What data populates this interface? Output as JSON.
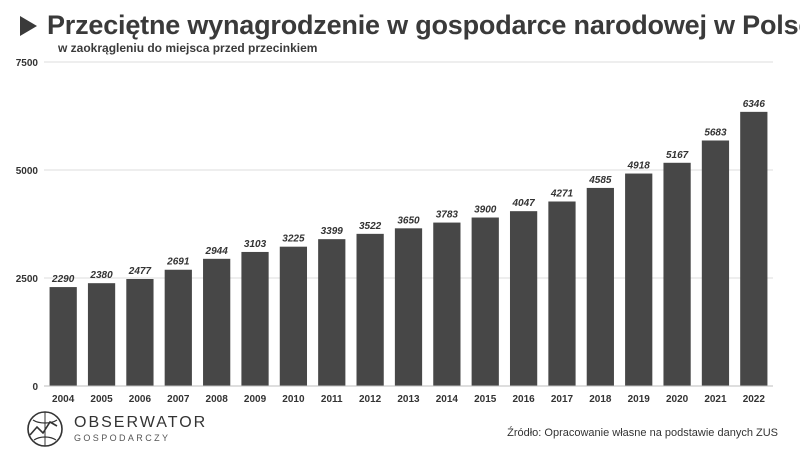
{
  "header": {
    "title": "Przeciętne wynagrodzenie w gospodarce narodowej w Polsce",
    "subtitle": "w zaokrągleniu do miejsca przed przecinkiem"
  },
  "chart_data": {
    "type": "bar",
    "categories": [
      "2004",
      "2005",
      "2006",
      "2007",
      "2008",
      "2009",
      "2010",
      "2011",
      "2012",
      "2013",
      "2014",
      "2015",
      "2016",
      "2017",
      "2018",
      "2019",
      "2020",
      "2021",
      "2022"
    ],
    "values": [
      2290,
      2380,
      2477,
      2691,
      2944,
      3103,
      3225,
      3399,
      3522,
      3650,
      3783,
      3900,
      4047,
      4271,
      4585,
      4918,
      5167,
      5683,
      6346
    ],
    "ylim": [
      0,
      7500
    ],
    "yticks": [
      0,
      2500,
      5000,
      7500
    ],
    "grid": true,
    "bar_color": "#474747"
  },
  "footer": {
    "logo_name": "OBSERWATOR",
    "logo_sub": "GOSPODARCZY",
    "source": "Źródło: Opracowanie własne na podstawie danych ZUS"
  }
}
